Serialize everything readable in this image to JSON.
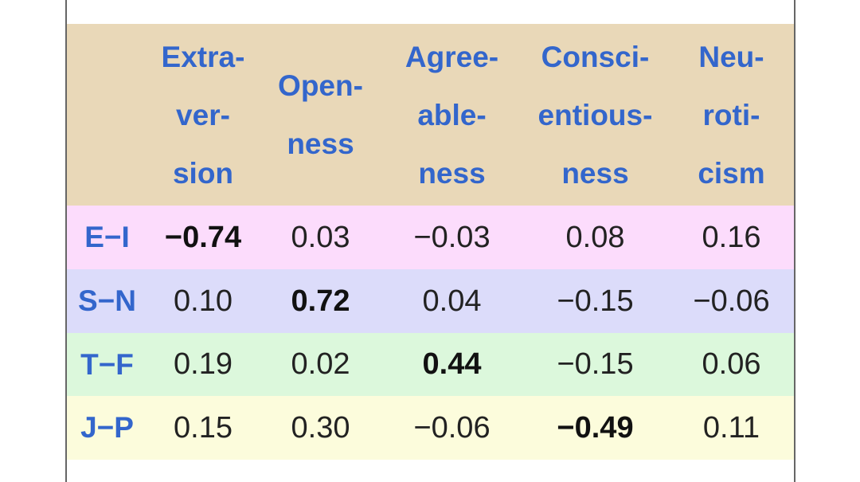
{
  "table": {
    "headers": [
      [
        "Extra-",
        "ver-",
        "sion"
      ],
      [
        "Open-",
        "ness"
      ],
      [
        "Agree-",
        "able-",
        "ness"
      ],
      [
        "Consci-",
        "entious-",
        "ness"
      ],
      [
        "Neu-",
        "roti-",
        "cism"
      ]
    ],
    "rows": [
      {
        "label": "E−I",
        "cells": [
          "−0.74",
          "0.03",
          "−0.03",
          "0.08",
          "0.16"
        ]
      },
      {
        "label": "S−N",
        "cells": [
          "0.10",
          "0.72",
          "0.04",
          "−0.15",
          "−0.06"
        ]
      },
      {
        "label": "T−F",
        "cells": [
          "0.19",
          "0.02",
          "0.44",
          "−0.15",
          "0.06"
        ]
      },
      {
        "label": "J−P",
        "cells": [
          "0.15",
          "0.30",
          "−0.06",
          "−0.49",
          "0.11"
        ]
      }
    ]
  }
}
